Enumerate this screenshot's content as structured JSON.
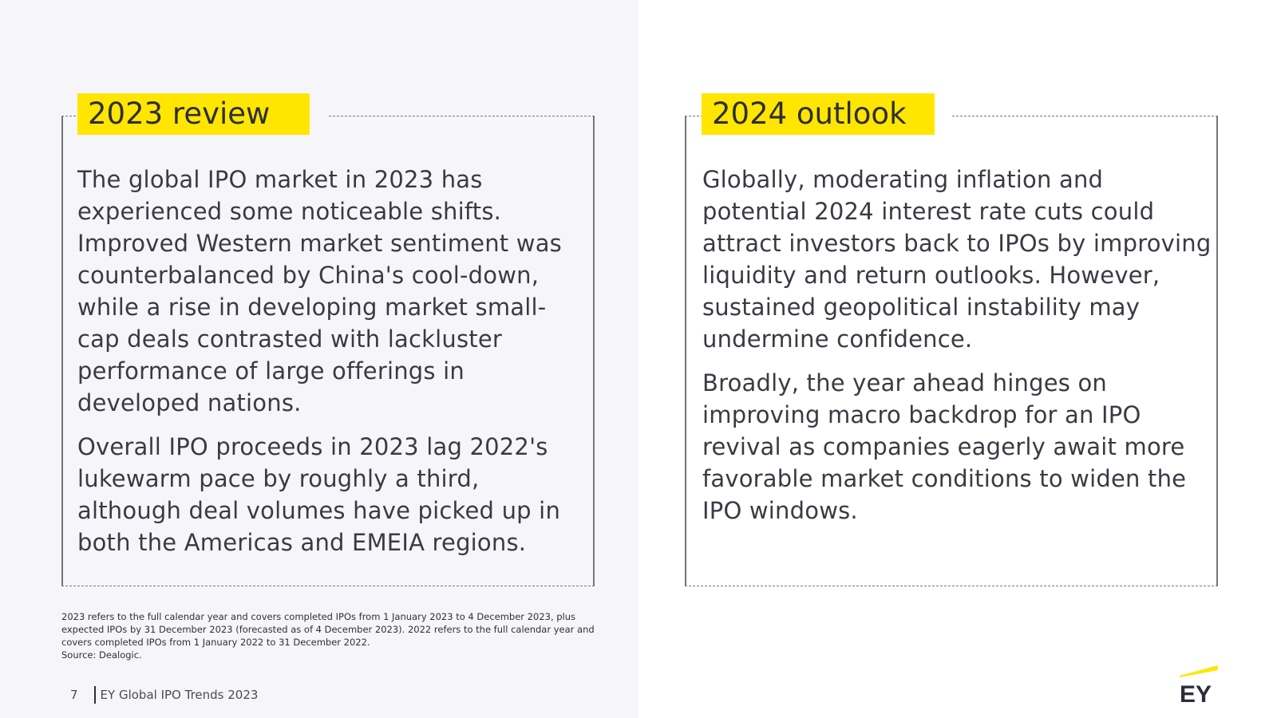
{
  "colors": {
    "accent": "#ffe600",
    "text": "#2e2e38",
    "left_background": "#f6f6fa",
    "frame": "#74747d"
  },
  "review": {
    "title": "2023 review",
    "paragraphs": [
      "The global IPO market in 2023 has experienced some noticeable shifts. Improved Western market sentiment was counterbalanced by China's cool-down, while a rise in developing market small-cap deals contrasted with lackluster performance of large offerings in developed nations.",
      "Overall IPO proceeds in 2023 lag 2022's lukewarm pace by roughly a third, although deal volumes have picked up in both the Americas and EMEIA regions."
    ]
  },
  "outlook": {
    "title": "2024 outlook",
    "paragraphs": [
      "Globally, moderating inflation and potential 2024 interest rate cuts could attract investors back to IPOs by improving liquidity and return outlooks. However, sustained geopolitical instability may undermine confidence.",
      "Broadly, the year ahead hinges on improving macro backdrop for an IPO revival as companies eagerly await more favorable market conditions to widen the IPO windows."
    ]
  },
  "footnote": {
    "note": "2023 refers to the full calendar year and covers completed IPOs from 1 January 2023 to 4 December 2023, plus expected IPOs by 31 December 2023 (forecasted as of 4 December 2023). 2022 refers to the full calendar year and covers completed IPOs from 1 January 2022 to 31 December 2022.",
    "source": "Source: Dealogic."
  },
  "footer": {
    "page_number": "7",
    "publication": "EY Global IPO Trends 2023"
  },
  "logo": {
    "text": "EY",
    "icon": "ey-logo-icon"
  }
}
